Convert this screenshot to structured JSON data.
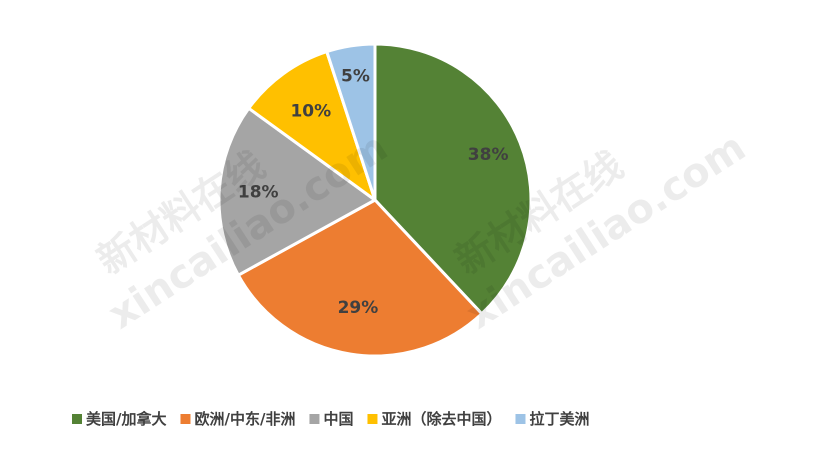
{
  "chart_data": {
    "type": "pie",
    "title": "",
    "categories": [
      "美国/加拿大",
      "欧洲/中东/非洲",
      "中国",
      "亚洲（除去中国）",
      "拉丁美洲"
    ],
    "values": [
      38,
      29,
      18,
      10,
      5
    ],
    "labels": [
      "38%",
      "29%",
      "18%",
      "10%",
      "5%"
    ],
    "colors": [
      "#548235",
      "#ed7d31",
      "#a5a5a5",
      "#ffc000",
      "#9dc3e6"
    ],
    "start_angle_deg": 0,
    "direction": "clockwise",
    "legend_position": "bottom"
  },
  "watermark": {
    "line1": "新材料在线",
    "line2": "xincailiao.com"
  }
}
